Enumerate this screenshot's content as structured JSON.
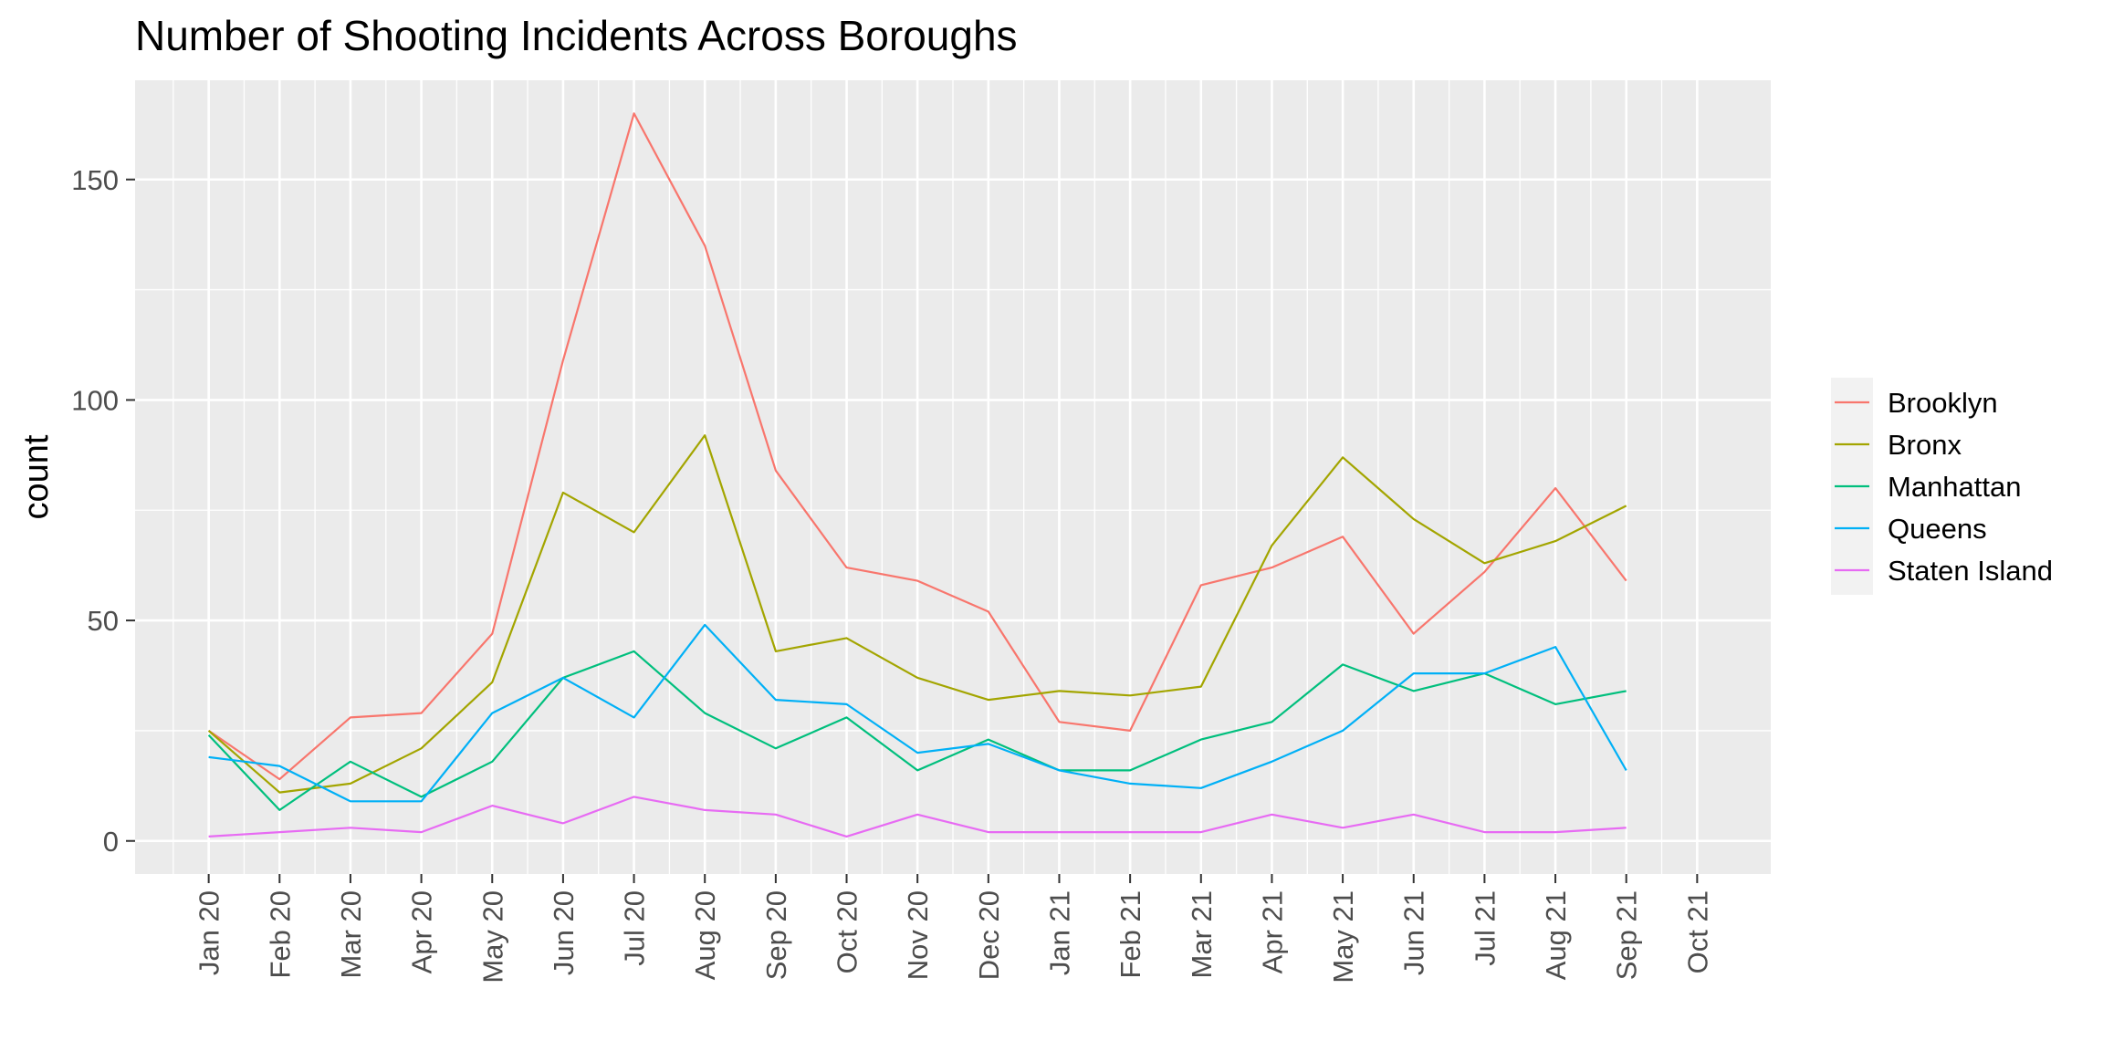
{
  "chart_data": {
    "type": "line",
    "title": "Number of Shooting Incidents Across Boroughs",
    "xlabel": "",
    "ylabel": "count",
    "x": [
      "Jan 20",
      "Feb 20",
      "Mar 20",
      "Apr 20",
      "May 20",
      "Jun 20",
      "Jul 20",
      "Aug 20",
      "Sep 20",
      "Oct 20",
      "Nov 20",
      "Dec 20",
      "Jan 21",
      "Feb 21",
      "Mar 21",
      "Apr 21",
      "May 21",
      "Jun 21",
      "Jul 21",
      "Aug 21",
      "Sep 21"
    ],
    "x_ticks": [
      "Jan 20",
      "Feb 20",
      "Mar 20",
      "Apr 20",
      "May 20",
      "Jun 20",
      "Jul 20",
      "Aug 20",
      "Sep 20",
      "Oct 20",
      "Nov 20",
      "Dec 20",
      "Jan 21",
      "Feb 21",
      "Mar 21",
      "Apr 21",
      "May 21",
      "Jun 21",
      "Jul 21",
      "Aug 21",
      "Sep 21",
      "Oct 21"
    ],
    "ylim": [
      -7.5,
      172.5
    ],
    "y_ticks": [
      0,
      50,
      100,
      150
    ],
    "grid": true,
    "legend_position": "right",
    "series": [
      {
        "name": "Brooklyn",
        "color": "#F8766D",
        "values": [
          25,
          14,
          28,
          29,
          47,
          109,
          165,
          135,
          84,
          62,
          59,
          52,
          27,
          25,
          58,
          62,
          69,
          47,
          61,
          80,
          59
        ]
      },
      {
        "name": "Bronx",
        "color": "#A3A500",
        "values": [
          25,
          11,
          13,
          21,
          36,
          79,
          70,
          92,
          43,
          46,
          37,
          32,
          34,
          33,
          35,
          67,
          87,
          73,
          63,
          68,
          76
        ]
      },
      {
        "name": "Manhattan",
        "color": "#00BF7D",
        "values": [
          24,
          7,
          18,
          10,
          18,
          37,
          43,
          29,
          21,
          28,
          16,
          23,
          16,
          16,
          23,
          27,
          40,
          34,
          38,
          31,
          34
        ]
      },
      {
        "name": "Queens",
        "color": "#00B0F6",
        "values": [
          19,
          17,
          9,
          9,
          29,
          37,
          28,
          49,
          32,
          31,
          20,
          22,
          16,
          13,
          12,
          18,
          25,
          38,
          38,
          44,
          16
        ]
      },
      {
        "name": "Staten Island",
        "color": "#E76BF3",
        "values": [
          1,
          2,
          3,
          2,
          8,
          4,
          10,
          7,
          6,
          1,
          6,
          2,
          2,
          2,
          2,
          6,
          3,
          6,
          2,
          2,
          3
        ]
      }
    ]
  }
}
